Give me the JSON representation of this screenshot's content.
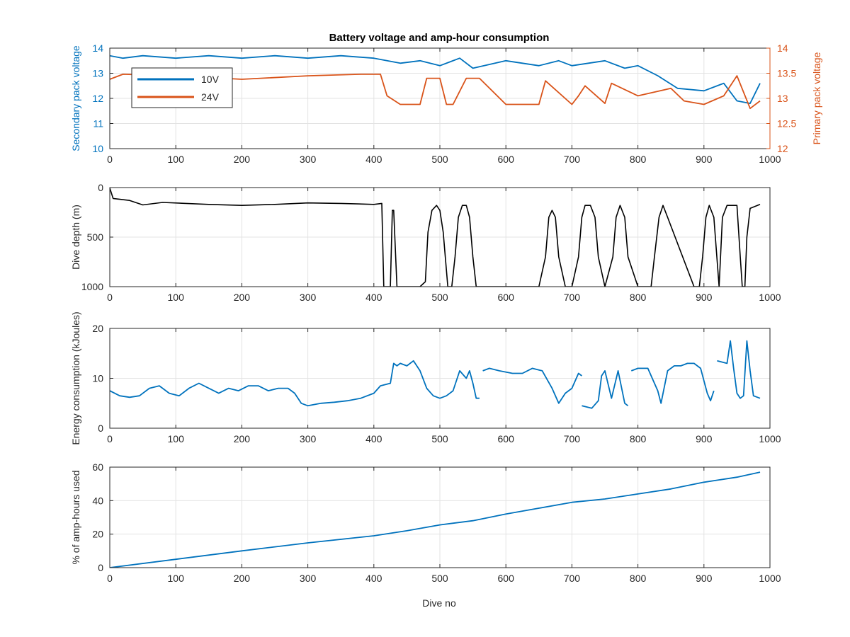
{
  "figure": {
    "title": "Battery voltage and amp-hour consumption",
    "xlabel": "Dive no",
    "colors": {
      "blue": "#0072BD",
      "orange": "#D95319",
      "black": "#000000",
      "grid": "#e3e3e3",
      "axis": "#262626"
    }
  },
  "chart_data": [
    {
      "type": "line",
      "dual_axis": true,
      "title": "Battery voltage and amp-hour consumption",
      "xlabel": "",
      "ylabel_left": "Secondary pack voltage",
      "ylabel_right": "Primary pack voltage",
      "xlim": [
        0,
        1000
      ],
      "ylim_left": [
        10,
        14
      ],
      "ylim_right": [
        12,
        14
      ],
      "xticks": [
        0,
        100,
        200,
        300,
        400,
        500,
        600,
        700,
        800,
        900,
        1000
      ],
      "yticks_left": [
        10,
        11,
        12,
        13,
        14
      ],
      "yticks_right": [
        12,
        12.5,
        13,
        13.5,
        14
      ],
      "yticklabels_right": [
        "12",
        "12.5",
        "13",
        "13.5",
        "14"
      ],
      "grid": true,
      "legend": {
        "placement": "top-left",
        "entries": [
          "10V",
          "24V"
        ]
      },
      "series": [
        {
          "name": "10V",
          "axis": "left",
          "color": "#0072BD",
          "x": [
            0,
            20,
            50,
            100,
            150,
            200,
            250,
            300,
            350,
            400,
            440,
            470,
            500,
            530,
            550,
            600,
            650,
            680,
            700,
            750,
            780,
            800,
            830,
            860,
            900,
            930,
            950,
            970,
            985
          ],
          "y": [
            13.7,
            13.6,
            13.7,
            13.6,
            13.7,
            13.6,
            13.7,
            13.6,
            13.7,
            13.6,
            13.4,
            13.5,
            13.3,
            13.6,
            13.2,
            13.5,
            13.3,
            13.5,
            13.3,
            13.5,
            13.2,
            13.3,
            12.9,
            12.4,
            12.3,
            12.6,
            11.9,
            11.8,
            12.6
          ]
        },
        {
          "name": "24V",
          "axis": "right",
          "color": "#D95319",
          "x": [
            0,
            20,
            100,
            200,
            300,
            380,
            410,
            420,
            440,
            470,
            480,
            500,
            510,
            520,
            540,
            560,
            600,
            650,
            660,
            700,
            710,
            720,
            750,
            760,
            800,
            850,
            870,
            900,
            930,
            950,
            970,
            985
          ],
          "y": [
            13.38,
            13.48,
            13.45,
            13.38,
            13.45,
            13.48,
            13.48,
            13.05,
            12.88,
            12.88,
            13.4,
            13.4,
            12.88,
            12.88,
            13.4,
            13.4,
            12.88,
            12.88,
            13.35,
            12.88,
            13.05,
            13.25,
            12.9,
            13.3,
            13.05,
            13.2,
            12.95,
            12.88,
            13.05,
            13.45,
            12.8,
            12.95
          ]
        }
      ]
    },
    {
      "type": "line",
      "title": "",
      "xlabel": "",
      "ylabel": "Dive depth (m)",
      "xlim": [
        0,
        1000
      ],
      "ylim": [
        0,
        1000
      ],
      "y_reversed": true,
      "xticks": [
        0,
        100,
        200,
        300,
        400,
        500,
        600,
        700,
        800,
        900,
        1000
      ],
      "yticks": [
        0,
        500,
        1000
      ],
      "grid": true,
      "series": [
        {
          "color": "#000000",
          "x": [
            0,
            5,
            30,
            50,
            80,
            150,
            200,
            250,
            300,
            350,
            400,
            412,
            415,
            420,
            425,
            428,
            430,
            435,
            470,
            478,
            482,
            488,
            495,
            500,
            505,
            512,
            518,
            523,
            528,
            534,
            540,
            545,
            550,
            555,
            565,
            575,
            580,
            650,
            660,
            665,
            670,
            675,
            680,
            690,
            700,
            710,
            715,
            720,
            728,
            735,
            740,
            750,
            762,
            767,
            773,
            780,
            785,
            800,
            820,
            825,
            832,
            838,
            845,
            885,
            893,
            898,
            903,
            908,
            915,
            923,
            928,
            935,
            945,
            950,
            955,
            958,
            962,
            965,
            970,
            985
          ],
          "y": [
            5,
            110,
            130,
            175,
            150,
            170,
            180,
            170,
            155,
            160,
            170,
            160,
            1000,
            1000,
            1000,
            230,
            230,
            1000,
            1000,
            950,
            450,
            230,
            180,
            230,
            450,
            1000,
            1000,
            700,
            300,
            180,
            180,
            300,
            700,
            1000,
            1000,
            1000,
            1000,
            1000,
            700,
            300,
            230,
            300,
            700,
            1000,
            1000,
            700,
            300,
            180,
            180,
            300,
            700,
            1000,
            700,
            300,
            180,
            300,
            700,
            1000,
            1000,
            700,
            300,
            180,
            300,
            1000,
            1000,
            700,
            300,
            180,
            300,
            1000,
            300,
            180,
            180,
            180,
            700,
            1000,
            1000,
            500,
            210,
            170
          ]
        }
      ]
    },
    {
      "type": "line",
      "title": "",
      "xlabel": "",
      "ylabel": "Energy consumption (kJoules)",
      "xlim": [
        0,
        1000
      ],
      "ylim": [
        0,
        20
      ],
      "xticks": [
        0,
        100,
        200,
        300,
        400,
        500,
        600,
        700,
        800,
        900,
        1000
      ],
      "yticks": [
        0,
        10,
        20
      ],
      "grid": true,
      "series": [
        {
          "color": "#0072BD",
          "x": [
            0,
            15,
            30,
            45,
            60,
            75,
            90,
            105,
            120,
            135,
            150,
            165,
            180,
            195,
            210,
            225,
            240,
            255,
            270,
            280,
            290,
            300,
            320,
            340,
            360,
            380,
            400,
            410,
            425,
            430,
            435,
            440,
            450,
            460,
            470,
            480,
            490,
            500,
            510,
            520,
            530,
            540,
            545,
            550,
            555,
            560,
            null,
            565,
            575,
            590,
            610,
            625,
            640,
            655,
            670,
            680,
            690,
            700,
            710,
            715,
            null,
            715,
            730,
            740,
            745,
            750,
            760,
            770,
            780,
            785,
            null,
            790,
            800,
            815,
            830,
            835,
            845,
            855,
            865,
            875,
            885,
            895,
            905,
            910,
            915,
            null,
            920,
            935,
            940,
            945,
            950,
            955,
            960,
            965,
            970,
            975,
            985
          ],
          "y": [
            7.5,
            6.5,
            6.2,
            6.5,
            8.0,
            8.5,
            7.0,
            6.5,
            8.0,
            9.0,
            8.0,
            7.0,
            8.0,
            7.5,
            8.5,
            8.5,
            7.5,
            8.0,
            8.0,
            7.0,
            5.0,
            4.5,
            5.0,
            5.2,
            5.5,
            6.0,
            7.0,
            8.5,
            9.0,
            13,
            12.5,
            13,
            12.5,
            13.5,
            11.5,
            8.0,
            6.5,
            6.0,
            6.5,
            7.5,
            11.5,
            10.0,
            11.5,
            9.0,
            6.0,
            6.0,
            null,
            11.5,
            12.0,
            11.5,
            11.0,
            11.0,
            12.0,
            11.5,
            8.0,
            5.0,
            7.0,
            8.0,
            11.0,
            10.5,
            null,
            4.5,
            4.0,
            5.5,
            10.5,
            11.5,
            6.0,
            11.5,
            5.0,
            4.5,
            null,
            11.5,
            12.0,
            12.0,
            7.5,
            5.0,
            11.5,
            12.5,
            12.5,
            13.0,
            13.0,
            12.0,
            7.0,
            5.5,
            7.5,
            null,
            13.5,
            13.0,
            17.5,
            12.0,
            7.0,
            6.0,
            6.5,
            17.5,
            11.5,
            6.5,
            6.0
          ]
        }
      ]
    },
    {
      "type": "line",
      "title": "",
      "xlabel": "Dive no",
      "ylabel": "% of amp-hours used",
      "xlim": [
        0,
        1000
      ],
      "ylim": [
        0,
        60
      ],
      "xticks": [
        0,
        100,
        200,
        300,
        400,
        500,
        600,
        700,
        800,
        900,
        1000
      ],
      "yticks": [
        0,
        20,
        40,
        60
      ],
      "grid": true,
      "series": [
        {
          "color": "#0072BD",
          "x": [
            0,
            100,
            200,
            300,
            400,
            450,
            500,
            550,
            600,
            650,
            700,
            750,
            800,
            850,
            900,
            950,
            985
          ],
          "y": [
            0,
            5,
            10,
            14.8,
            19,
            22,
            25.5,
            28,
            32,
            35.5,
            39,
            41,
            44,
            47,
            51,
            54,
            57
          ]
        }
      ]
    }
  ]
}
